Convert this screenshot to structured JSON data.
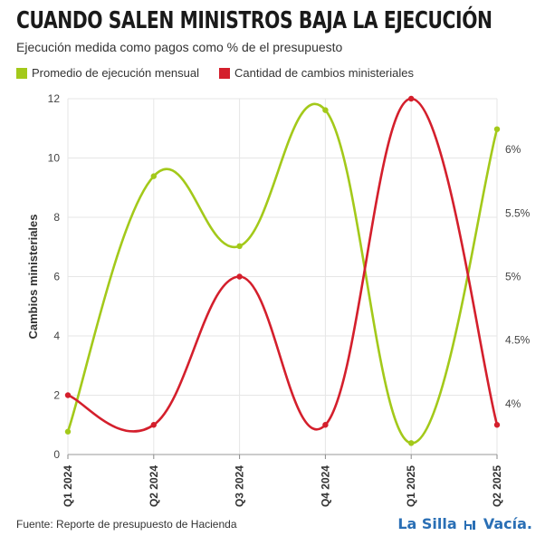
{
  "title": "CUANDO SALEN MINISTROS BAJA LA EJECUCIÓN",
  "subtitle": "Ejecución medida como pagos como % de el presupuesto",
  "source": "Fuente: Reporte de presupuesto de Hacienda",
  "brand": {
    "part1": "La Silla",
    "part2": "Vacía.",
    "icon": "chair-icon"
  },
  "colors": {
    "green": "#a3c91a",
    "red": "#d41f2c",
    "grid": "#e6e6e6",
    "axis": "#555555"
  },
  "chart_data": {
    "type": "line",
    "categories": [
      "Q1 2024",
      "Q2 2024",
      "Q3 2024",
      "Q4 2024",
      "Q1 2025",
      "Q2 2025"
    ],
    "series": [
      {
        "name": "Promedio de ejecución mensual",
        "axis": "right",
        "color": "#a3c91a",
        "values": [
          3.78,
          5.79,
          5.24,
          6.31,
          3.69,
          6.16
        ]
      },
      {
        "name": "Cantidad de cambios ministeriales",
        "axis": "left",
        "color": "#d41f2c",
        "values": [
          2,
          1,
          6,
          1,
          12,
          1
        ]
      }
    ],
    "left_axis": {
      "label": "Cambios ministeriales",
      "ylim": [
        0,
        12
      ],
      "ticks": [
        "0",
        "2",
        "4",
        "6",
        "8",
        "10",
        "12"
      ]
    },
    "right_axis": {
      "label": "",
      "ylim": [
        3.6,
        6.4
      ],
      "ticks": [
        4,
        4.5,
        5,
        5.5,
        6
      ],
      "tick_labels": [
        "4%",
        "4.5%",
        "5%",
        "5.5%",
        "6%"
      ]
    },
    "grid": true,
    "legend_position": "top-left",
    "smooth": true
  }
}
